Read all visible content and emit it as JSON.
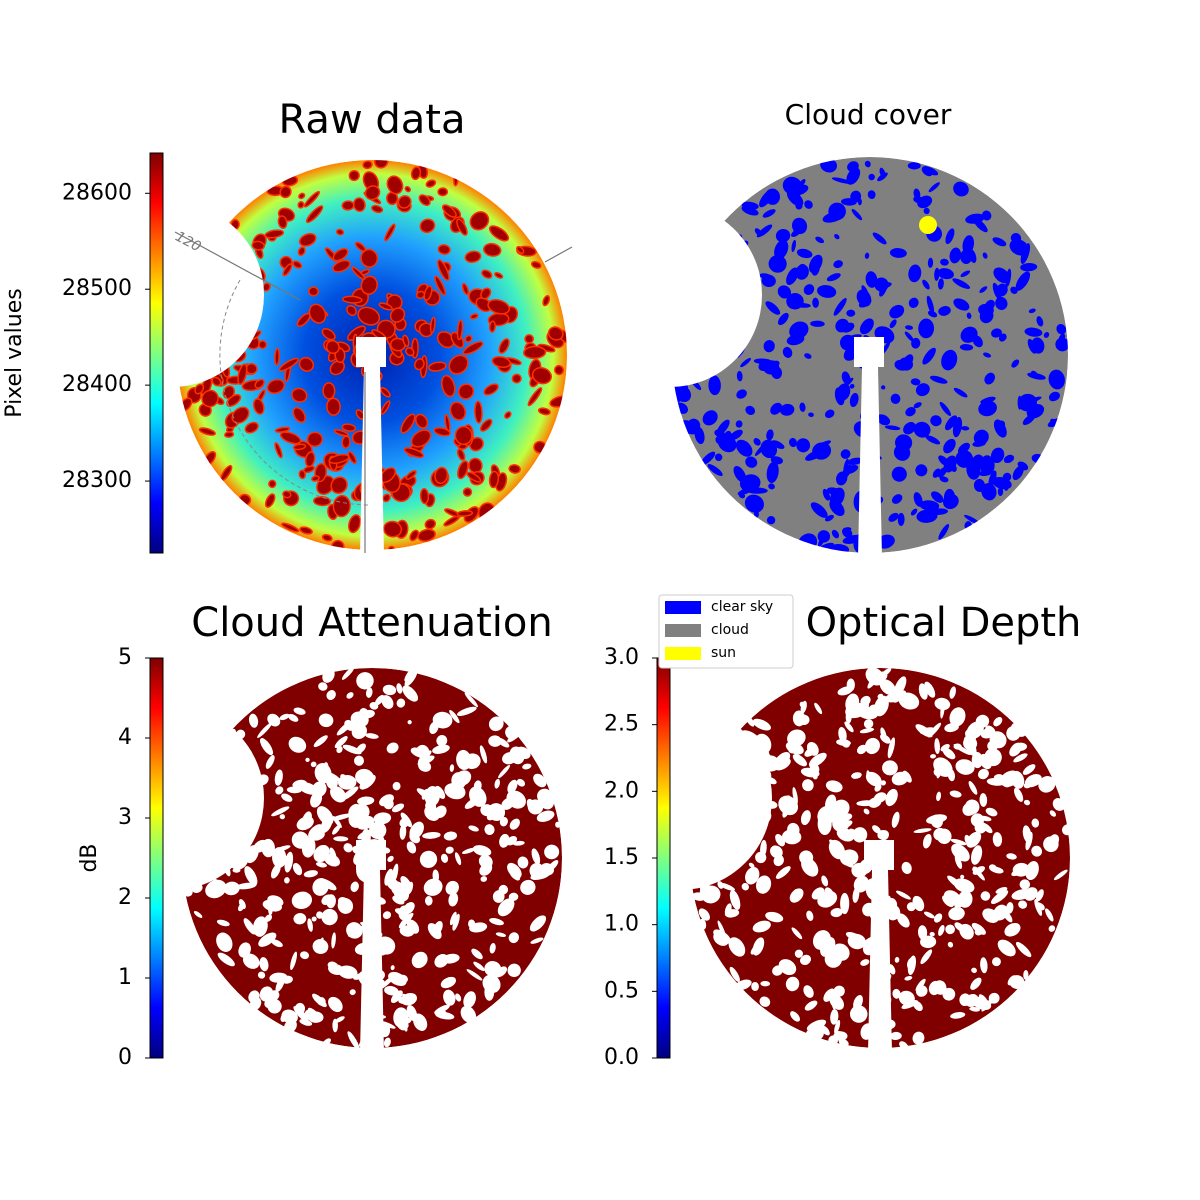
{
  "chart_data": [
    {
      "type": "image",
      "title": "Raw data",
      "ylabel": "Pixel values",
      "colormap": "jet",
      "ylim": [
        28225,
        28642
      ],
      "yticks": [
        28300,
        28400,
        28500,
        28600
      ],
      "annotations": [
        "120"
      ]
    },
    {
      "type": "image",
      "title": "Cloud cover",
      "series": [
        {
          "name": "clear sky",
          "color": "#0000ff"
        },
        {
          "name": "cloud",
          "color": "#808080"
        },
        {
          "name": "sun",
          "color": "#ffff00"
        }
      ]
    },
    {
      "type": "image",
      "title": "Cloud Attenuation",
      "ylabel": "dB",
      "colormap": "jet",
      "ylim": [
        0,
        5
      ],
      "yticks": [
        0,
        1,
        2,
        3,
        4,
        5
      ]
    },
    {
      "type": "image",
      "title": "Cloud Optical Depth",
      "colormap": "jet",
      "ylim": [
        0,
        3
      ],
      "yticks": [
        {
          "value": 0,
          "label": "0.0"
        },
        {
          "value": 0.5,
          "label": "0.5"
        },
        {
          "value": 1,
          "label": "1.0"
        },
        {
          "value": 1.5,
          "label": "1.5"
        },
        {
          "value": 2,
          "label": "2.0"
        },
        {
          "value": 2.5,
          "label": "2.5"
        },
        {
          "value": 3,
          "label": "3.0"
        }
      ]
    }
  ]
}
